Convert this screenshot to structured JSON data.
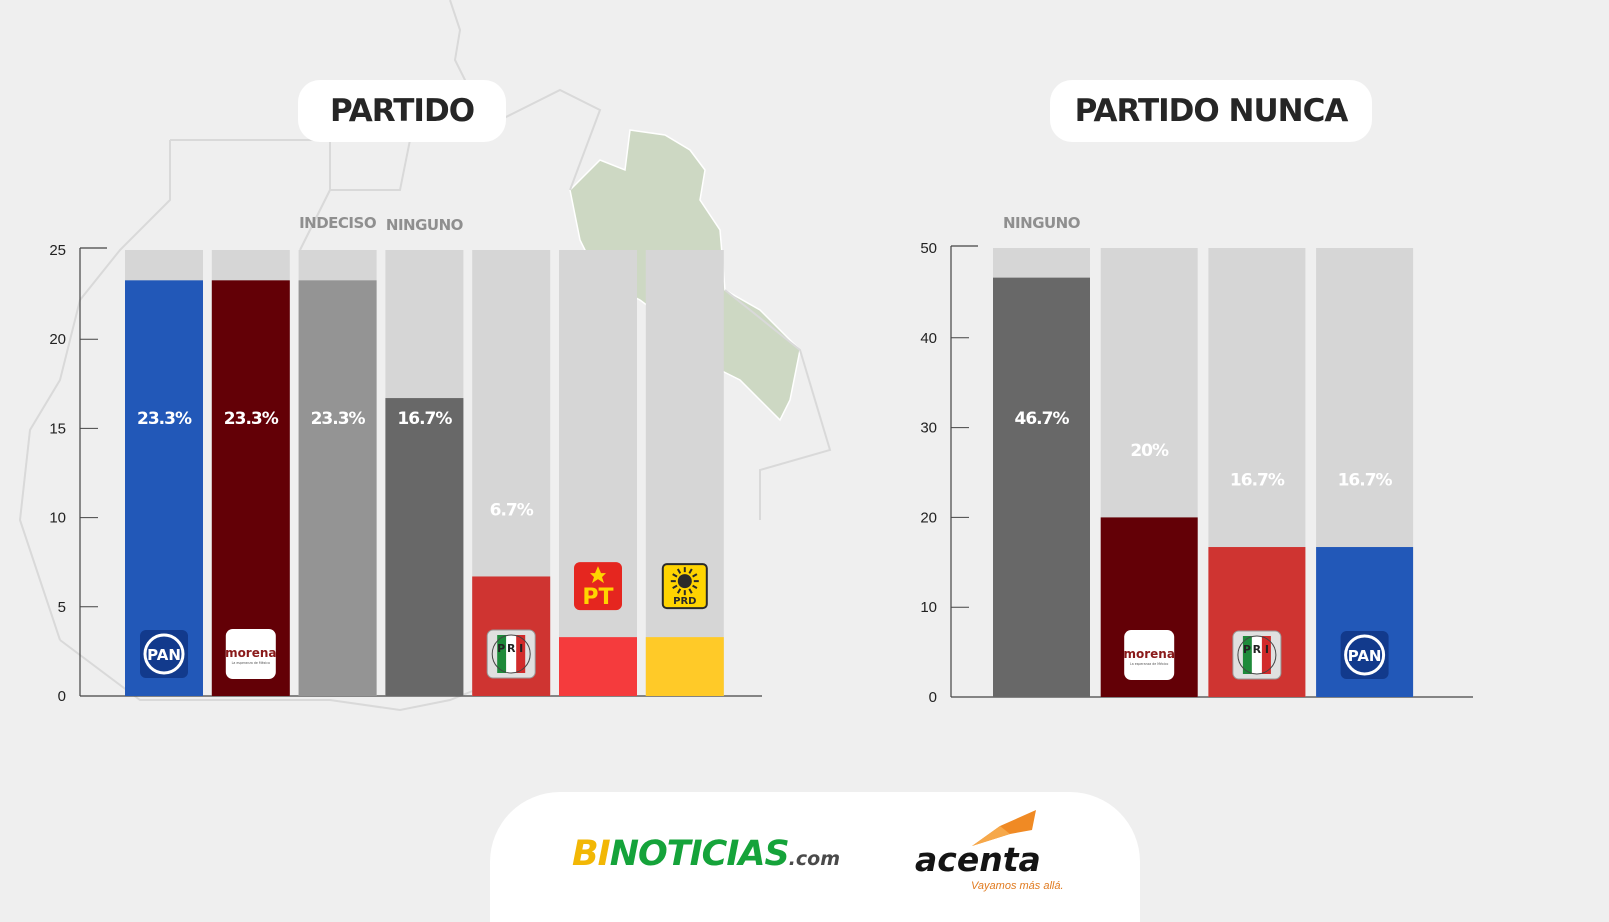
{
  "charts_meta": {
    "chart1_title": "PARTIDO",
    "chart2_title": "PARTIDO NUNCA"
  },
  "colors": {
    "background": "#efefef",
    "bar_track": "#d6d6d6",
    "map_outline": "#d9d9d9",
    "map_green": "#cdd8c3"
  },
  "chart_data": [
    {
      "type": "bar",
      "title": "PARTIDO",
      "categories": [
        "PAN",
        "morena",
        "INDECISO",
        "NINGUNO",
        "PRI",
        "PT",
        "PRD"
      ],
      "values": [
        23.3,
        23.3,
        23.3,
        16.7,
        6.7,
        3.3,
        3.3
      ],
      "value_labels": [
        "23.3%",
        "23.3%",
        "23.3%",
        "16.7%",
        "6.7%",
        "3.3%",
        "3.3%"
      ],
      "colors": [
        "#2258b8",
        "#630006",
        "#949494",
        "#686868",
        "#cf3431",
        "#f53b3d",
        "#ffca28"
      ],
      "text_labels": [
        "",
        "",
        "INDECISO",
        "NINGUNO",
        "",
        "",
        ""
      ],
      "logos": [
        "pan-logo",
        "morena-logo",
        "",
        "",
        "pri-logo",
        "pt-logo",
        "prd-logo"
      ],
      "ylim": [
        0,
        25
      ],
      "yticks": [
        0,
        5,
        10,
        15,
        20,
        25
      ],
      "xlabel": "",
      "ylabel": "",
      "grid": false
    },
    {
      "type": "bar",
      "title": "PARTIDO NUNCA",
      "categories": [
        "NINGUNO",
        "morena",
        "PRI",
        "PAN"
      ],
      "values": [
        46.7,
        20,
        16.7,
        16.7
      ],
      "value_labels": [
        "46.7%",
        "20%",
        "16.7%",
        "16.7%"
      ],
      "colors": [
        "#686868",
        "#630006",
        "#cf3431",
        "#2258b8"
      ],
      "text_labels": [
        "NINGUNO",
        "",
        "",
        ""
      ],
      "logos": [
        "",
        "morena-logo",
        "pri-logo",
        "pan-logo"
      ],
      "ylim": [
        0,
        50
      ],
      "yticks": [
        0,
        10,
        20,
        30,
        40,
        50
      ],
      "xlabel": "",
      "ylabel": "",
      "grid": false
    }
  ],
  "logo_text": {
    "pan": "PAN",
    "morena": "morena",
    "morena_sub": "La esperanza de México",
    "pri_letters": [
      "P",
      "R",
      "I"
    ],
    "pt": "PT",
    "prd": "PRD"
  },
  "footer": {
    "brand1_bi": "BI",
    "brand1_noticias": "NOTICIAS",
    "brand1_com": ".com",
    "brand2_name": "acenta",
    "brand2_tagline": "Vayamos más allá."
  }
}
